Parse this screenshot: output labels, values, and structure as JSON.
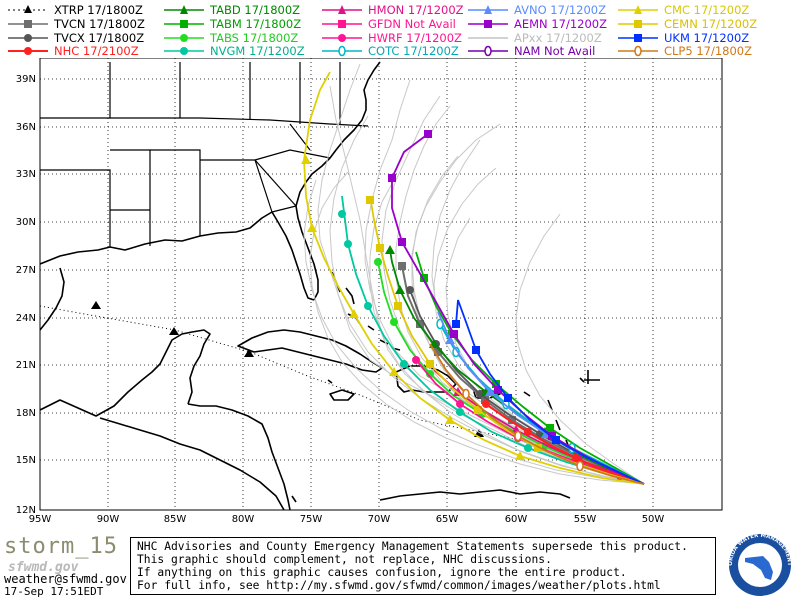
{
  "legend": [
    {
      "label": "XTRP  17/1800Z",
      "color": "#000000",
      "marker": "triangle",
      "dash": true
    },
    {
      "label": "TVCN  17/1800Z",
      "color": "#6e6e6e",
      "marker": "square"
    },
    {
      "label": "TVCX  17/1800Z",
      "color": "#555555",
      "marker": "circle"
    },
    {
      "label": "NHC  17/2100Z",
      "color": "#ff2020",
      "marker": "circle"
    },
    {
      "label": "TABD  17/1800Z",
      "color": "#008800",
      "marker": "triangle"
    },
    {
      "label": "TABM  17/1800Z",
      "color": "#00b000",
      "marker": "square"
    },
    {
      "label": "TABS  17/1800Z",
      "color": "#22dd22",
      "marker": "circle"
    },
    {
      "label": "NVGM  17/1200Z",
      "color": "#00c8a0",
      "marker": "circle"
    },
    {
      "label": "HMON  17/1200Z",
      "color": "#e0108a",
      "marker": "triangle"
    },
    {
      "label": "GFDN  Not Avail",
      "color": "#ff1493",
      "marker": "square"
    },
    {
      "label": "HWRF  17/1200Z",
      "color": "#ff1493",
      "marker": "circle"
    },
    {
      "label": "COTC  17/1200Z",
      "color": "#00b8c8",
      "marker": "ring"
    },
    {
      "label": "AVNO  17/1200Z",
      "color": "#5a8cff",
      "marker": "triangle"
    },
    {
      "label": "AEMN  17/1200Z",
      "color": "#9900cc",
      "marker": "square"
    },
    {
      "label": "APxx  17/1200Z",
      "color": "#c4c4c4",
      "marker": "none"
    },
    {
      "label": "NAM   Not Avail",
      "color": "#7700aa",
      "marker": "ring"
    },
    {
      "label": "CMC   17/1200Z",
      "color": "#e0d000",
      "marker": "triangle"
    },
    {
      "label": "CEMN  17/1200Z",
      "color": "#e0c800",
      "marker": "square"
    },
    {
      "label": "UKM   17/1200Z",
      "color": "#0030ff",
      "marker": "square"
    },
    {
      "label": "CLP5  17/1800Z",
      "color": "#d07818",
      "marker": "ring"
    }
  ],
  "map": {
    "lat_labels": [
      "39N",
      "36N",
      "33N",
      "30N",
      "27N",
      "24N",
      "21N",
      "18N",
      "15N",
      "12N"
    ],
    "lon_labels": [
      "95W",
      "90W",
      "85W",
      "80W",
      "75W",
      "70W",
      "65W",
      "60W",
      "55W",
      "50W"
    ]
  },
  "footer": {
    "storm_name": "storm_15",
    "site_logo": "sfwmd.gov",
    "email": "weather@sfwmd.gov",
    "timestamp": "17-Sep 17:51EDT",
    "disclaimer": [
      "NHC Advisories and County Emergency Management Statements supersede this product.",
      "This graphic should complement, not replace, NHC discussions.",
      "If anything on this graphic causes confusion, ignore the entire product.",
      "For full info, see  http://my.sfwmd.gov/sfwmd/common/images/weather/plots.html"
    ],
    "seal_text": "SOUTH FLORIDA WATER MANAGEMENT DISTRICT"
  }
}
